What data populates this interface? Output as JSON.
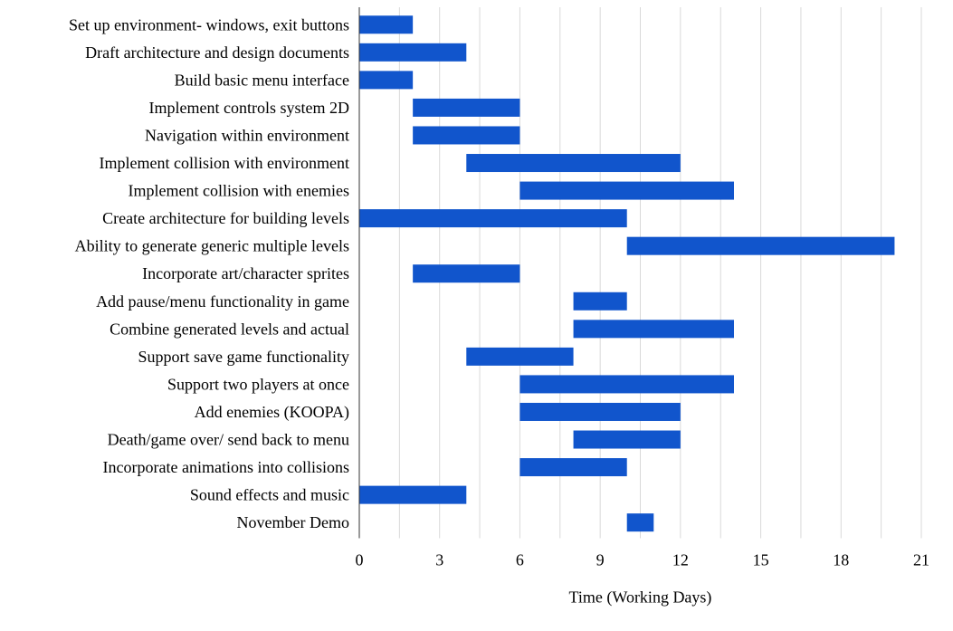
{
  "chart_data": {
    "type": "bar",
    "orientation": "horizontal",
    "stacked_floating": true,
    "xlabel": "Time (Working Days)",
    "ylabel": "",
    "title": "",
    "xlim": [
      0,
      21
    ],
    "xticks": [
      0,
      3,
      6,
      9,
      12,
      15,
      18,
      21
    ],
    "grid": true,
    "legend": "none",
    "bar_color": "#1155cc",
    "categories": [
      "Set up environment- windows, exit buttons",
      "Draft architecture and design documents",
      "Build basic menu interface",
      "Implement controls system 2D",
      "Navigation within environment",
      "Implement collision with environment",
      "Implement collision with enemies",
      "Create architecture for building levels",
      "Ability to generate generic multiple levels",
      "Incorporate art/character sprites",
      "Add pause/menu functionality in game",
      "Combine generated levels and actual",
      "Support save game functionality",
      "Support two players at once",
      "Add enemies (KOOPA)",
      "Death/game over/ send back to menu",
      "Incorporate animations into collisions",
      "Sound effects and music",
      "November Demo"
    ],
    "start": [
      0,
      0,
      0,
      2,
      2,
      4,
      6,
      0,
      10,
      2,
      8,
      8,
      4,
      6,
      6,
      8,
      6,
      0,
      10
    ],
    "end": [
      2,
      4,
      2,
      6,
      6,
      12,
      14,
      10,
      20,
      6,
      10,
      14,
      8,
      14,
      12,
      12,
      10,
      4,
      11
    ]
  }
}
